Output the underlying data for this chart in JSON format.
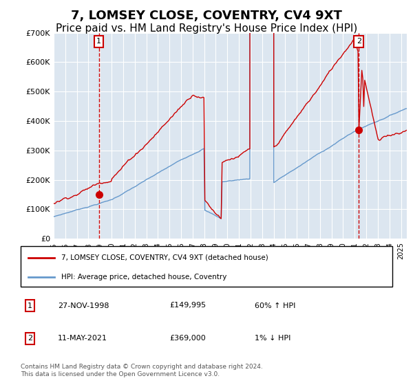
{
  "title": "7, LOMSEY CLOSE, COVENTRY, CV4 9XT",
  "subtitle": "Price paid vs. HM Land Registry's House Price Index (HPI)",
  "title_fontsize": 13,
  "subtitle_fontsize": 11,
  "bg_color": "#dce6f0",
  "red_color": "#cc0000",
  "blue_color": "#6699cc",
  "ylim": [
    0,
    700000
  ],
  "yticks": [
    0,
    100000,
    200000,
    300000,
    400000,
    500000,
    600000,
    700000
  ],
  "ytick_labels": [
    "£0",
    "£100K",
    "£200K",
    "£300K",
    "£400K",
    "£500K",
    "£600K",
    "£700K"
  ],
  "sale1_date": 1998.9,
  "sale1_price": 149995,
  "sale2_date": 2021.36,
  "sale2_price": 369000,
  "legend_label_red": "7, LOMSEY CLOSE, COVENTRY, CV4 9XT (detached house)",
  "legend_label_blue": "HPI: Average price, detached house, Coventry",
  "table_row1": [
    "1",
    "27-NOV-1998",
    "£149,995",
    "60% ↑ HPI"
  ],
  "table_row2": [
    "2",
    "11-MAY-2021",
    "£369,000",
    "1% ↓ HPI"
  ],
  "footer": "Contains HM Land Registry data © Crown copyright and database right 2024.\nThis data is licensed under the Open Government Licence v3.0.",
  "xstart": 1995.0,
  "xend": 2025.5
}
